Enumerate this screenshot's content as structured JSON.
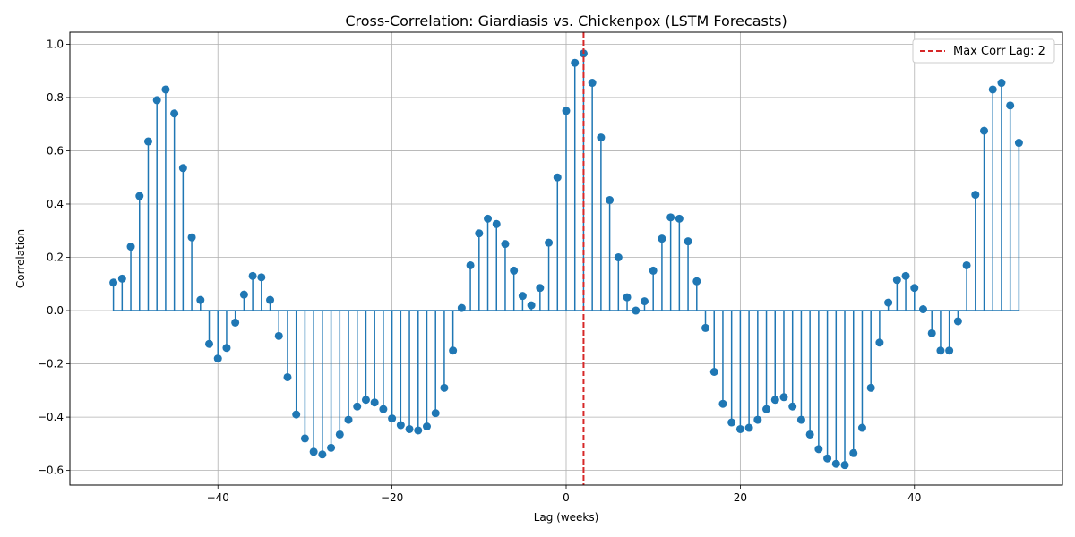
{
  "chart_data": {
    "type": "stem",
    "title": "Cross-Correlation: Giardiasis vs. Chickenpox (LSTM Forecasts)",
    "xlabel": "Lag (weeks)",
    "ylabel": "Correlation",
    "xlim": [
      -57,
      57
    ],
    "ylim": [
      -0.655,
      1.045
    ],
    "xticks": [
      -40,
      -20,
      0,
      20,
      40
    ],
    "yticks": [
      -0.6,
      -0.4,
      -0.2,
      0.0,
      0.2,
      0.4,
      0.6,
      0.8,
      1.0
    ],
    "xtick_labels": [
      "−40",
      "−20",
      "0",
      "20",
      "40"
    ],
    "ytick_labels": [
      "−0.6",
      "−0.4",
      "−0.2",
      "0.0",
      "0.2",
      "0.4",
      "0.6",
      "0.8",
      "1.0"
    ],
    "grid": true,
    "series_color": "#1f77b4",
    "max_line": {
      "x": 2,
      "label": "Max Corr Lag: 2",
      "color": "#d62728",
      "style": "dashed"
    },
    "legend_placement": "top-right",
    "x": [
      -52,
      -51,
      -50,
      -49,
      -48,
      -47,
      -46,
      -45,
      -44,
      -43,
      -42,
      -41,
      -40,
      -39,
      -38,
      -37,
      -36,
      -35,
      -34,
      -33,
      -32,
      -31,
      -30,
      -29,
      -28,
      -27,
      -26,
      -25,
      -24,
      -23,
      -22,
      -21,
      -20,
      -19,
      -18,
      -17,
      -16,
      -15,
      -14,
      -13,
      -12,
      -11,
      -10,
      -9,
      -8,
      -7,
      -6,
      -5,
      -4,
      -3,
      -2,
      -1,
      0,
      1,
      2,
      3,
      4,
      5,
      6,
      7,
      8,
      9,
      10,
      11,
      12,
      13,
      14,
      15,
      16,
      17,
      18,
      19,
      20,
      21,
      22,
      23,
      24,
      25,
      26,
      27,
      28,
      29,
      30,
      31,
      32,
      33,
      34,
      35,
      36,
      37,
      38,
      39,
      40,
      41,
      42,
      43,
      44,
      45,
      46,
      47,
      48,
      49,
      50,
      51,
      52
    ],
    "values": [
      0.105,
      0.12,
      0.24,
      0.43,
      0.635,
      0.79,
      0.83,
      0.74,
      0.535,
      0.275,
      0.04,
      -0.125,
      -0.18,
      -0.14,
      -0.045,
      0.06,
      0.13,
      0.125,
      0.04,
      -0.095,
      -0.25,
      -0.39,
      -0.48,
      -0.53,
      -0.54,
      -0.515,
      -0.465,
      -0.41,
      -0.36,
      -0.335,
      -0.345,
      -0.37,
      -0.405,
      -0.43,
      -0.445,
      -0.45,
      -0.435,
      -0.385,
      -0.29,
      -0.15,
      0.01,
      0.17,
      0.29,
      0.345,
      0.325,
      0.25,
      0.15,
      0.055,
      0.02,
      0.085,
      0.255,
      0.5,
      0.75,
      0.93,
      0.965,
      0.855,
      0.65,
      0.415,
      0.2,
      0.05,
      0.0,
      0.035,
      0.15,
      0.27,
      0.35,
      0.345,
      0.26,
      0.11,
      -0.065,
      -0.23,
      -0.35,
      -0.42,
      -0.445,
      -0.44,
      -0.41,
      -0.37,
      -0.335,
      -0.325,
      -0.36,
      -0.41,
      -0.465,
      -0.52,
      -0.555,
      -0.575,
      -0.58,
      -0.535,
      -0.44,
      -0.29,
      -0.12,
      0.03,
      0.115,
      0.13,
      0.085,
      0.005,
      -0.085,
      -0.15,
      -0.15,
      -0.04,
      0.17,
      0.435,
      0.675,
      0.83,
      0.855,
      0.77,
      0.63
    ]
  }
}
